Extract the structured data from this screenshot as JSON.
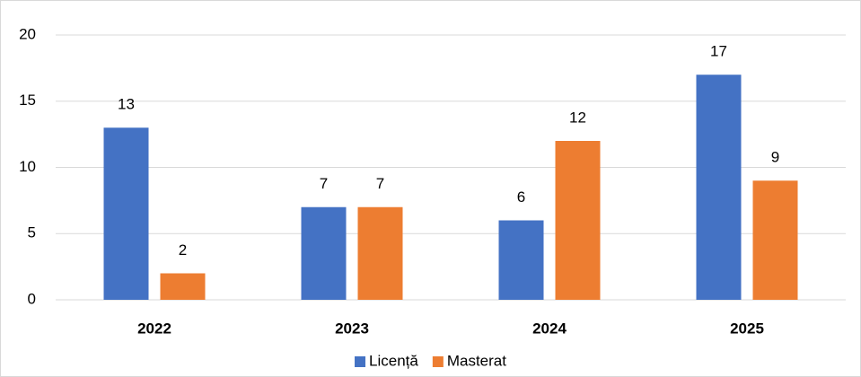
{
  "chart_data": {
    "type": "bar",
    "categories": [
      "2022",
      "2023",
      "2024",
      "2025"
    ],
    "series": [
      {
        "name": "Licență",
        "color": "#4472c4",
        "values": [
          13,
          7,
          6,
          17
        ]
      },
      {
        "name": "Masterat",
        "color": "#ed7d31",
        "values": [
          2,
          7,
          12,
          9
        ]
      }
    ],
    "ylim": [
      0,
      20
    ],
    "yticks": [
      0,
      5,
      10,
      15,
      20
    ],
    "grid": true,
    "legend": "bottom"
  }
}
